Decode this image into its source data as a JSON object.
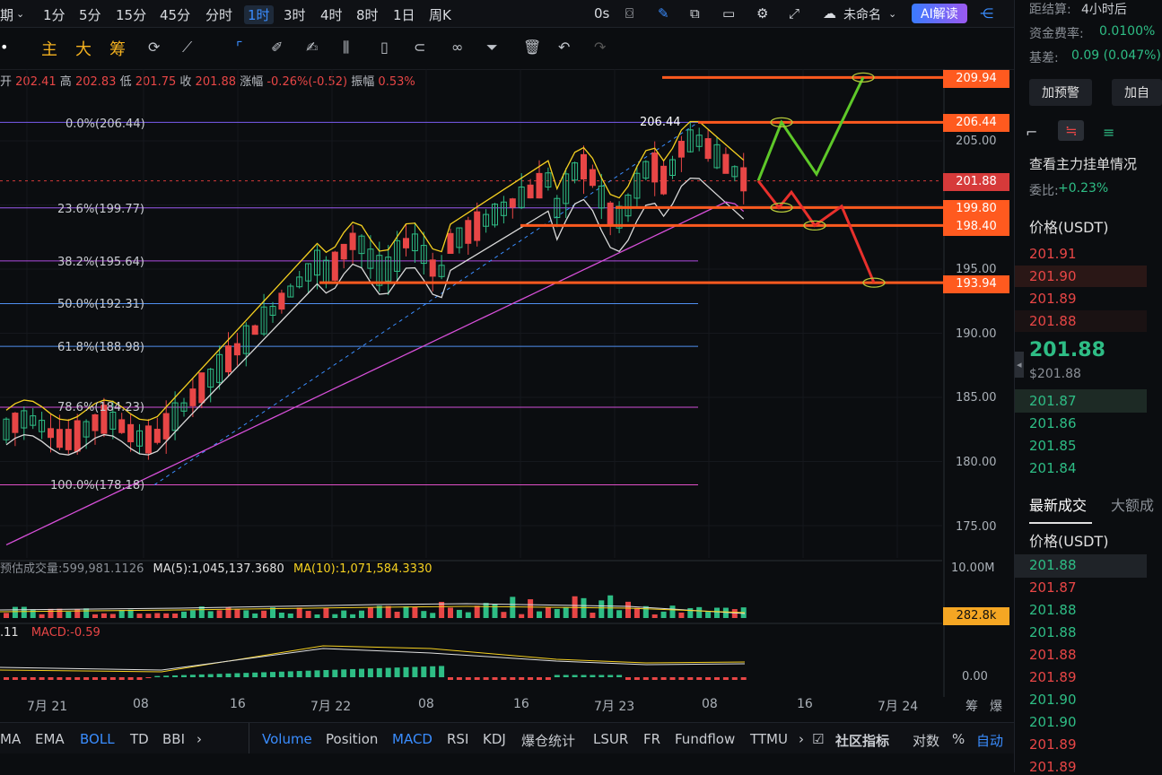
{
  "topbar": {
    "period_label": "期",
    "timeframes": [
      "1分",
      "5分",
      "15分",
      "45分",
      "分时",
      "1时",
      "3时",
      "4时",
      "8时",
      "1日",
      "周K"
    ],
    "active_timeframe": "1时",
    "countdown": "0s",
    "layout_name": "未命名",
    "ai_button": "AI解读"
  },
  "toolbar2": {
    "main_label": "主",
    "large_label": "大",
    "chips_label": "筹"
  },
  "ohlc": {
    "open_label": "开",
    "open": "202.41",
    "high_label": "高",
    "high": "202.83",
    "low_label": "低",
    "low": "201.75",
    "close_label": "收",
    "close": "201.88",
    "change_label": "涨幅",
    "change": "-0.26%(-0.52)",
    "amp_label": "振幅",
    "amp": "0.53%"
  },
  "fib": [
    {
      "label": "0.0%(206.44)",
      "color": "#7a5cf0"
    },
    {
      "label": "23.6%(199.77)",
      "color": "#9b59f0"
    },
    {
      "label": "38.2%(195.64)",
      "color": "#b04de0"
    },
    {
      "label": "50.0%(192.31)",
      "color": "#4f8ff0"
    },
    {
      "label": "61.8%(188.98)",
      "color": "#4f8ff0"
    },
    {
      "label": "78.6%(184.23)",
      "color": "#d24fd8"
    },
    {
      "label": "100.0%(178.18)",
      "color": "#e050c8"
    }
  ],
  "peak_label": "206.44",
  "price_tags": [
    {
      "value": "209.94",
      "color": "#ff5a1f"
    },
    {
      "value": "206.44",
      "color": "#ff5a1f"
    },
    {
      "value": "201.88",
      "color": "#d63a3a"
    },
    {
      "value": "199.80",
      "color": "#ff5a1f"
    },
    {
      "value": "198.40",
      "color": "#ff5a1f"
    },
    {
      "value": "193.94",
      "color": "#ff5a1f"
    },
    {
      "value": "282.8k",
      "color": "#f5a623"
    }
  ],
  "yaxis": [
    "205.00",
    "195.00",
    "190.00",
    "185.00",
    "180.00",
    "175.00",
    "10.00M",
    "0.00"
  ],
  "volume": {
    "label": "预估成交量:599,981.1126",
    "ma5": "MA(5):1,045,137.3680",
    "ma10": "MA(10):1,071,584.3330"
  },
  "macd": {
    "prefix": ".11",
    "macd": "MACD:-0.59"
  },
  "xaxis": [
    "7月 21",
    "08",
    "16",
    "7月 22",
    "08",
    "16",
    "7月 23",
    "08",
    "16",
    "7月 24",
    "筹",
    "爆"
  ],
  "bottombar": {
    "left_items": [
      "MA",
      "EMA",
      "BOLL",
      "TD",
      "BBI"
    ],
    "right_items": [
      "Volume",
      "Position",
      "MACD",
      "RSI",
      "KDJ",
      "爆仓统计",
      "LSUR",
      "FR",
      "Fundflow",
      "TTMU"
    ],
    "community": "社区指标",
    "log": "对数",
    "percent": "%",
    "auto": "自动"
  },
  "right": {
    "settlement_label": "距结算:",
    "settlement_value": "4小时后",
    "funding_label": "资金费率:",
    "funding_value": "0.0100%",
    "basis_label": "基差:",
    "basis_value": "0.09 (0.047%)",
    "add_alert": "加预警",
    "add_self": "加自",
    "orderbook_title": "查看主力挂单情况",
    "ratio_label": "委比:",
    "ratio_value": "+0.23%",
    "price_header": "价格(USDT)",
    "asks": [
      "201.91",
      "201.90",
      "201.89",
      "201.88"
    ],
    "last_price": "201.88",
    "last_price_usd": "$201.88",
    "bids": [
      "201.87",
      "201.86",
      "201.85",
      "201.84"
    ],
    "trades_tab": "最新成交",
    "big_tab": "大额成",
    "trades_header": "价格(USDT)",
    "trades": [
      {
        "p": "201.88",
        "c": "green"
      },
      {
        "p": "201.87",
        "c": "red"
      },
      {
        "p": "201.88",
        "c": "green"
      },
      {
        "p": "201.88",
        "c": "green"
      },
      {
        "p": "201.88",
        "c": "red"
      },
      {
        "p": "201.89",
        "c": "red"
      },
      {
        "p": "201.90",
        "c": "green"
      },
      {
        "p": "201.90",
        "c": "green"
      },
      {
        "p": "201.89",
        "c": "red"
      },
      {
        "p": "201.89",
        "c": "red"
      }
    ]
  }
}
